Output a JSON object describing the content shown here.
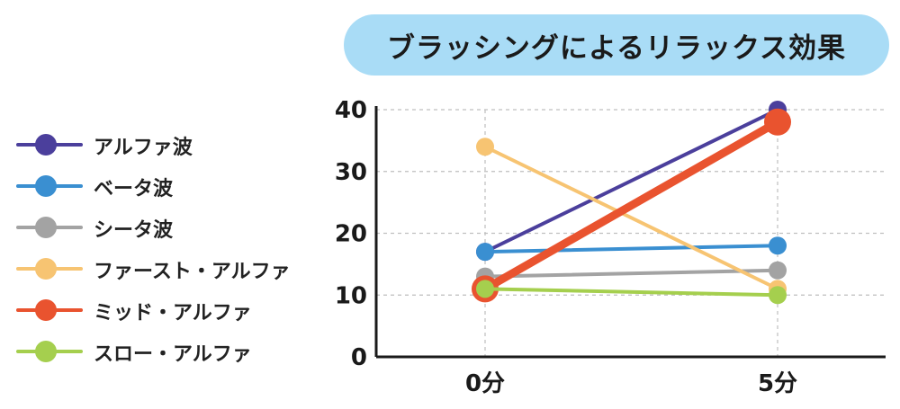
{
  "title": "ブラッシングによるリラックス効果",
  "chart_data": {
    "type": "line",
    "title": "ブラッシングによるリラックス効果",
    "xlabel": "",
    "ylabel": "",
    "categories": [
      "0分",
      "5分"
    ],
    "ylim": [
      0,
      40
    ],
    "yticks": [
      "0",
      "10",
      "20",
      "30",
      "40"
    ],
    "grid": true,
    "legend_position": "left",
    "series": [
      {
        "name": "アルファ波",
        "color": "#4b3f9c",
        "values": [
          17,
          40
        ]
      },
      {
        "name": "ベータ波",
        "color": "#3a8fd1",
        "values": [
          17,
          18
        ]
      },
      {
        "name": "シータ波",
        "color": "#a3a3a3",
        "values": [
          13,
          14
        ]
      },
      {
        "name": "ファースト・アルファ",
        "color": "#f7c472",
        "values": [
          34,
          11
        ]
      },
      {
        "name": "ミッド・アルファ",
        "color": "#e9532f",
        "values": [
          11,
          38
        ]
      },
      {
        "name": "スロー・アルファ",
        "color": "#a5cf4e",
        "values": [
          11,
          10
        ]
      }
    ]
  }
}
